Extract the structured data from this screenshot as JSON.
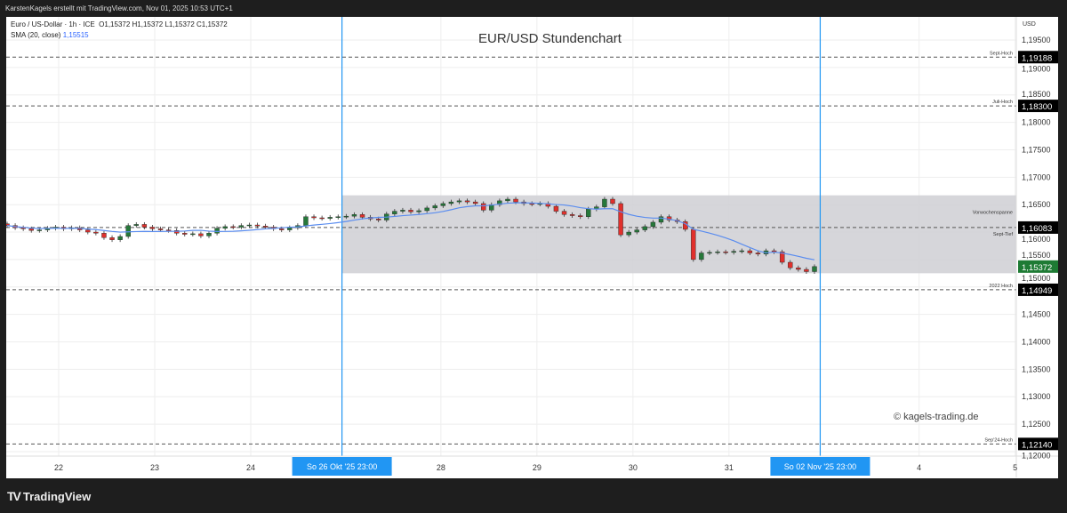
{
  "header": {
    "credit": "KarstenKagels erstellt mit TradingView.com, Nov 01, 2025 10:53 UTC+1"
  },
  "legend": {
    "symbol": "Euro / US-Dollar · 1h · ICE",
    "ohlc": "O1,15372  H1,15372  L1,15372  C1,15372",
    "sma_label": "SMA (20, close)",
    "sma_value": "1,15515"
  },
  "footer": {
    "brand": "TradingView"
  },
  "watermark": "© kagels-trading.de",
  "colors": {
    "up": "#26783a",
    "down": "#e0302c",
    "sma": "#5b8def",
    "marker": "#2196f3",
    "range_box": "#cfcfd3",
    "last_price": "#1e7b34"
  },
  "chart_data": {
    "type": "candlestick",
    "title": "EUR/USD Stundenchart",
    "currency": "USD",
    "ylim": [
      1.1192,
      1.1985
    ],
    "y_ticks": [
      "1,19500",
      "1,19000",
      "1,18500",
      "1,18000",
      "1,17500",
      "1,17000",
      "1,16500",
      "1,16000",
      "1,15500",
      "1,15000",
      "1,14500",
      "1,14000",
      "1,13500",
      "1,13000",
      "1,12500",
      "1,12000"
    ],
    "y_tick_values": [
      1.195,
      1.19,
      1.185,
      1.18,
      1.175,
      1.17,
      1.165,
      1.16,
      1.155,
      1.15,
      1.145,
      1.14,
      1.135,
      1.13,
      1.125,
      1.12
    ],
    "x_ticks": [
      {
        "label": "22",
        "day": 0
      },
      {
        "label": "23",
        "day": 1
      },
      {
        "label": "24",
        "day": 2
      },
      {
        "label": "28",
        "day": 3.98
      },
      {
        "label": "29",
        "day": 4.98
      },
      {
        "label": "30",
        "day": 5.98
      },
      {
        "label": "31",
        "day": 6.98
      },
      {
        "label": "4",
        "day": 8.96
      },
      {
        "label": "5",
        "day": 9.96
      }
    ],
    "markers": [
      {
        "label": "So 26 Okt '25   23:00",
        "day": 2.95
      },
      {
        "label": "So 02 Nov '25   23:00",
        "day": 7.93
      }
    ],
    "closes": [
      1.1612,
      1.1608,
      1.1606,
      1.1603,
      1.1604,
      1.1607,
      1.1609,
      1.1606,
      1.1608,
      1.1604,
      1.16,
      1.1598,
      1.159,
      1.1586,
      1.1592,
      1.1612,
      1.1614,
      1.1609,
      1.1606,
      1.1604,
      1.1603,
      1.1598,
      1.1596,
      1.1597,
      1.1593,
      1.1598,
      1.1607,
      1.161,
      1.1609,
      1.1612,
      1.1613,
      1.1611,
      1.1609,
      1.1606,
      1.1604,
      1.1608,
      1.1612,
      1.1628,
      1.1626,
      1.1625,
      1.1627,
      1.1628,
      1.1629,
      1.1632,
      1.1627,
      1.1624,
      1.1622,
      1.1633,
      1.1638,
      1.164,
      1.1637,
      1.1639,
      1.1644,
      1.1648,
      1.1652,
      1.1655,
      1.1657,
      1.1655,
      1.1652,
      1.164,
      1.165,
      1.1657,
      1.166,
      1.1655,
      1.1652,
      1.1651,
      1.1652,
      1.1647,
      1.1638,
      1.1632,
      1.163,
      1.1628,
      1.1642,
      1.1646,
      1.166,
      1.1652,
      1.1595,
      1.16,
      1.1604,
      1.161,
      1.1618,
      1.1628,
      1.1622,
      1.1619,
      1.1605,
      1.155,
      1.1562,
      1.1563,
      1.1564,
      1.1563,
      1.1565,
      1.1566,
      1.1562,
      1.156,
      1.1566,
      1.1564,
      1.1545,
      1.1535,
      1.1532,
      1.1528,
      1.15372
    ],
    "levels": [
      {
        "label": "Sept-Hoch",
        "value": 1.19188,
        "badge": "1,19188"
      },
      {
        "label": "Juli-Hoch",
        "value": 1.183,
        "badge": "1,18300"
      },
      {
        "label": "Sept-Tief",
        "value": 1.16083,
        "badge": "1,16083"
      },
      {
        "label": "2022 Hoch",
        "value": 1.14949,
        "badge": "1,14949"
      },
      {
        "label": "Sep'24-Hoch",
        "value": 1.1214,
        "badge": "1,12140"
      }
    ],
    "range_box": {
      "label": "Vorwochenspanne",
      "low": 1.1525,
      "high": 1.1667
    },
    "last_price": {
      "value": 1.15372,
      "badge": "1,15372"
    }
  }
}
